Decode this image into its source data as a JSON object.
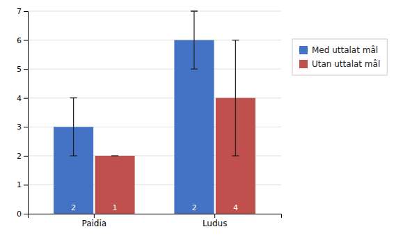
{
  "chart_data": {
    "type": "bar",
    "categories": [
      "Paidia",
      "Ludus"
    ],
    "series": [
      {
        "name": "Med uttalat mål",
        "color": "#4472C4",
        "values": [
          3,
          6
        ],
        "errors_low": [
          1,
          1
        ],
        "errors_high": [
          1,
          1
        ],
        "bar_labels": [
          "2",
          "2"
        ]
      },
      {
        "name": "Utan uttalat mål",
        "color": "#C0504D",
        "values": [
          2,
          4
        ],
        "errors_low": [
          0,
          2
        ],
        "errors_high": [
          0,
          2
        ],
        "bar_labels": [
          "1",
          "4"
        ]
      }
    ],
    "ylim": [
      0,
      7
    ],
    "yticks": [
      0,
      1,
      2,
      3,
      4,
      5,
      6,
      7
    ],
    "grid": true,
    "legend": "right"
  }
}
